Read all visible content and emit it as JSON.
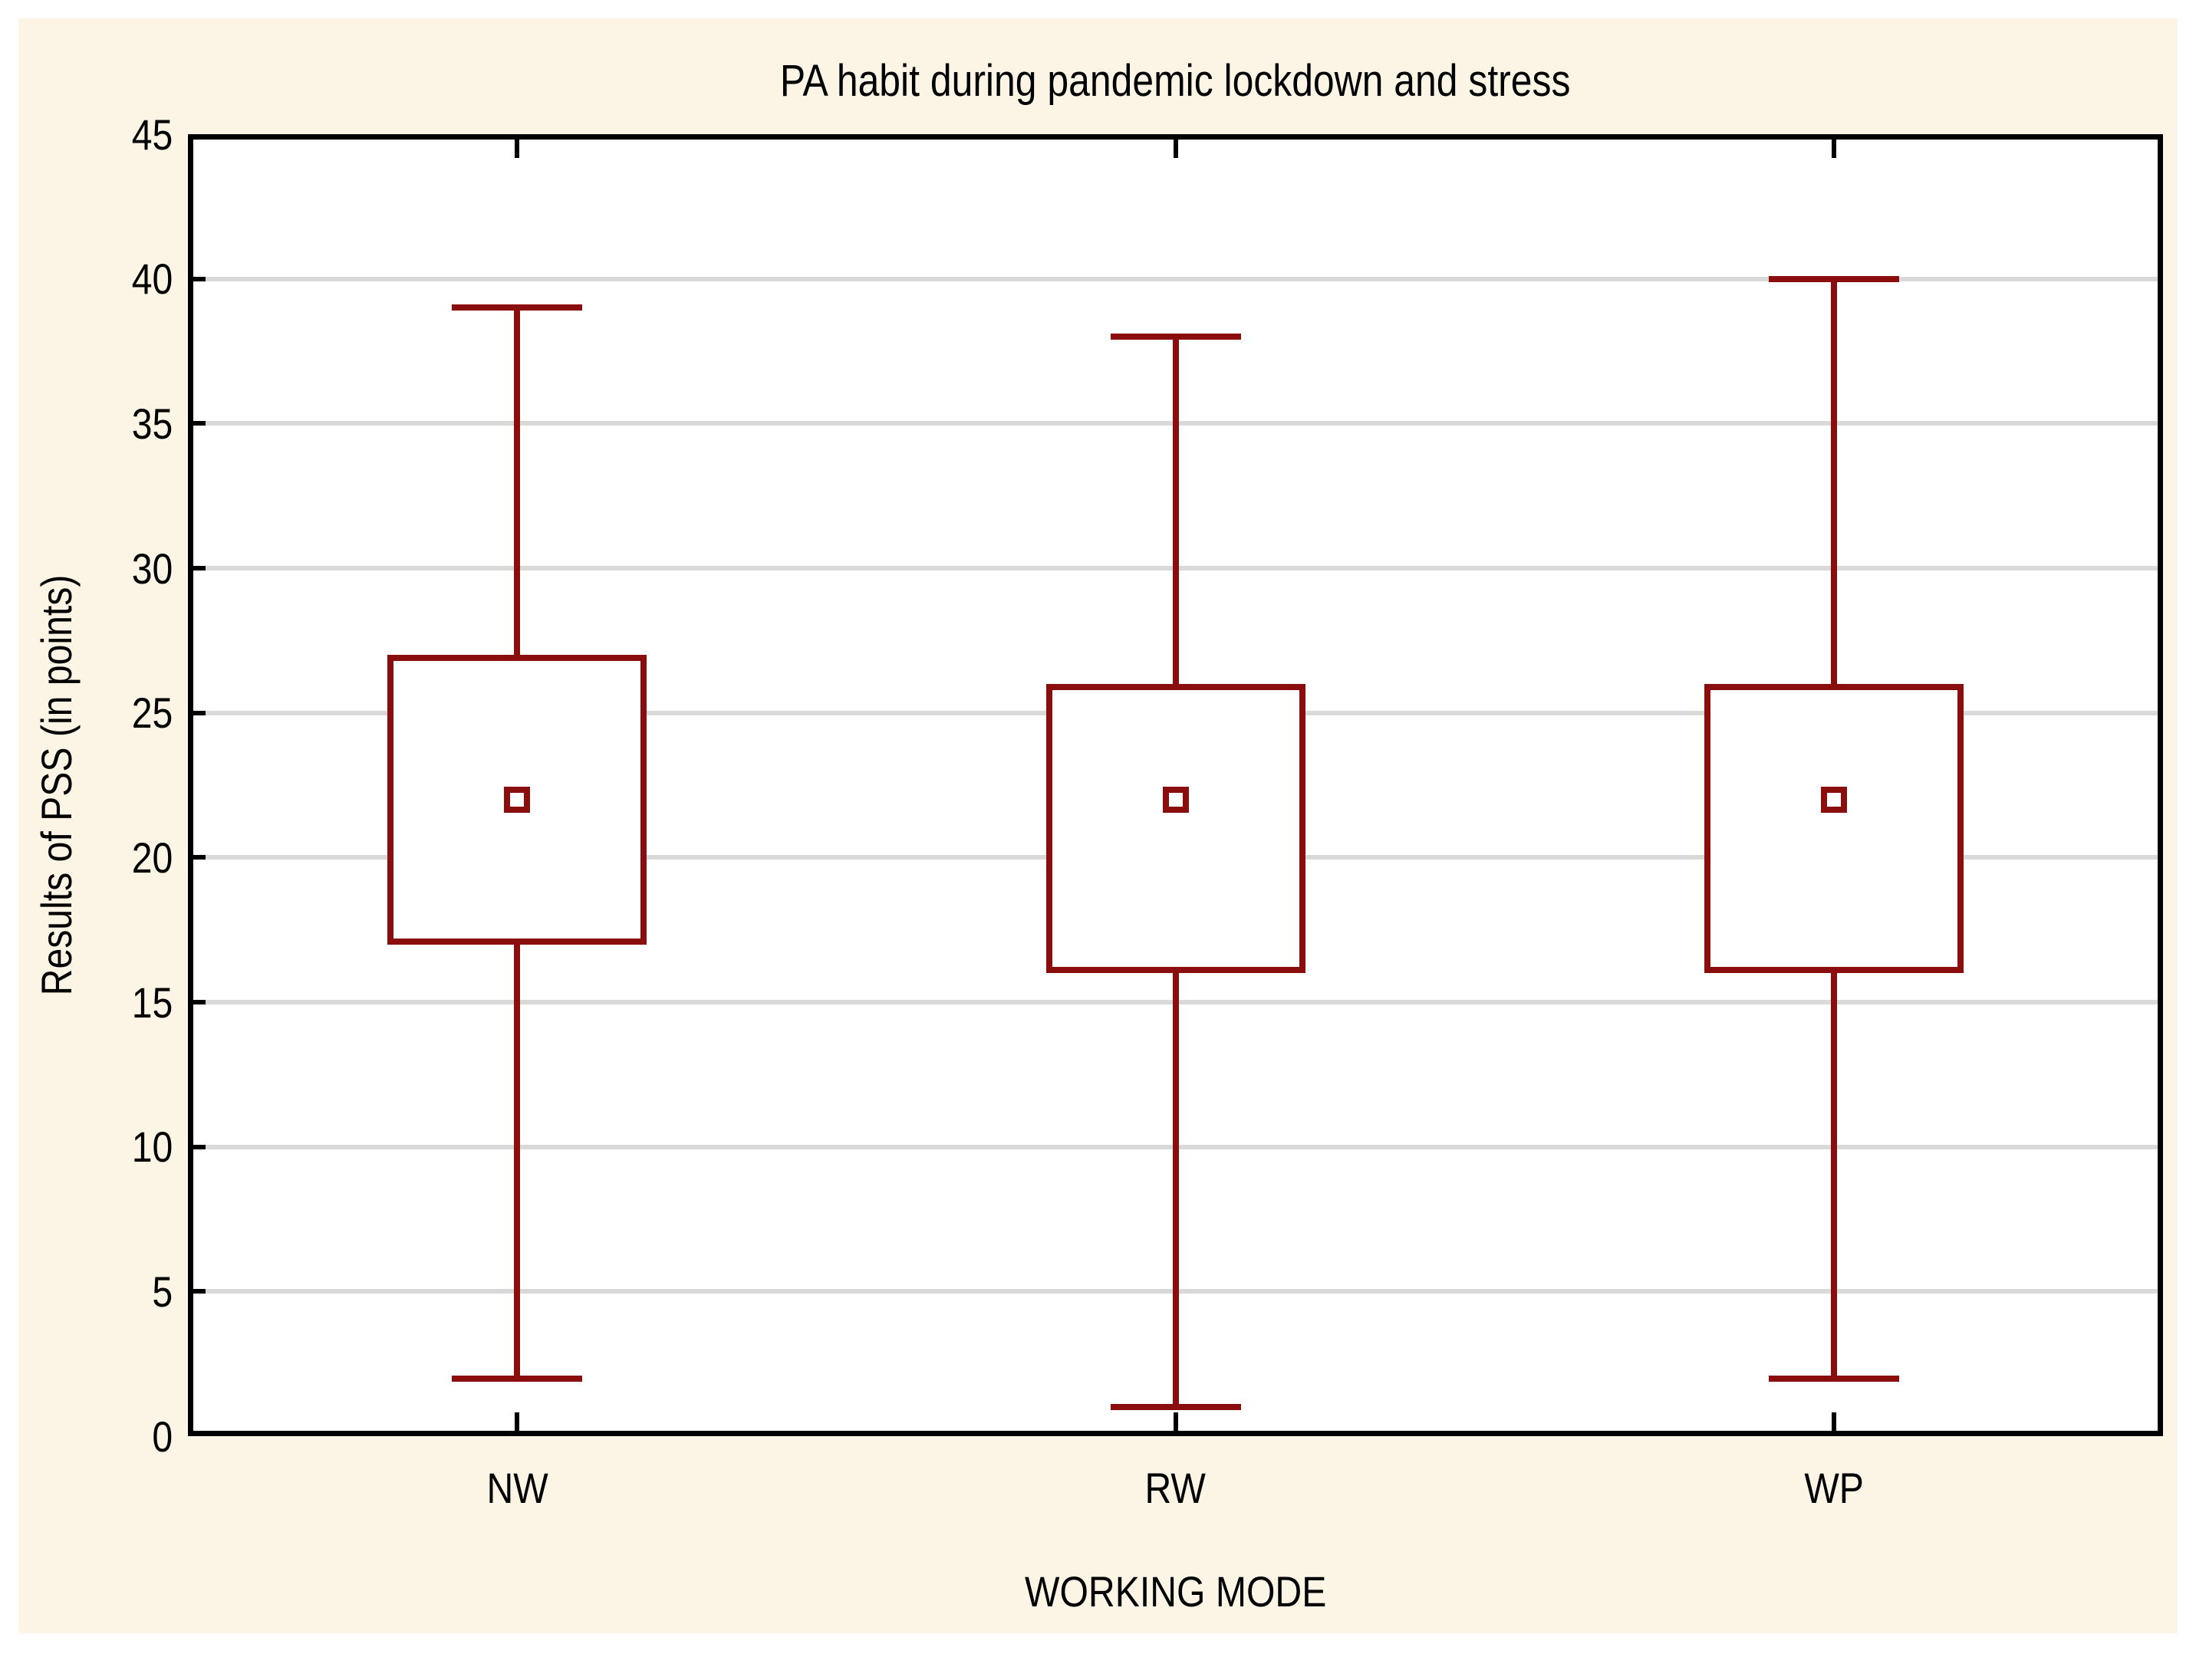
{
  "figure": {
    "background_color": "#FCF5E5",
    "plot_background_color": "#FFFFFF",
    "page_background_color": "#FFFFFF"
  },
  "chart_data": {
    "type": "box",
    "title": "PA habit during pandemic lockdown and stress",
    "xlabel": "WORKING MODE",
    "ylabel": "Results of PSS (in points)",
    "categories": [
      "NW",
      "RW",
      "WP"
    ],
    "ylim": [
      0,
      45
    ],
    "yticks": [
      0,
      5,
      10,
      15,
      20,
      25,
      30,
      35,
      40,
      45
    ],
    "grid": "horizontal-only",
    "legend": "none",
    "marker": "mean-square",
    "series": [
      {
        "category": "NW",
        "whisker_low": 2,
        "q1": 17,
        "mean": 22,
        "q3": 27,
        "whisker_high": 39
      },
      {
        "category": "RW",
        "whisker_low": 1,
        "q1": 16,
        "mean": 22,
        "q3": 26,
        "whisker_high": 38
      },
      {
        "category": "WP",
        "whisker_low": 2,
        "q1": 16,
        "mean": 22,
        "q3": 26,
        "whisker_high": 40
      }
    ],
    "colors": {
      "box_line": "#8A0E0E",
      "gridline": "#D9D9D9",
      "axis_line": "#000000",
      "text": "#000000"
    }
  }
}
